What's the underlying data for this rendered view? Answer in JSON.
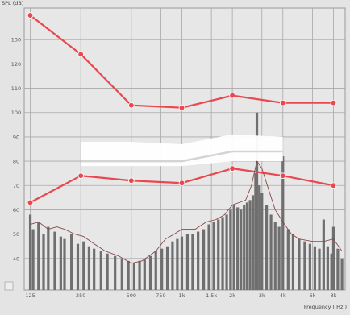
{
  "chart_data": {
    "type": "line",
    "title": "",
    "ylabel": "SPL (dB)",
    "xlabel": "Frequency ( Hz )",
    "x_scale": "log",
    "xlim": [
      115,
      9400
    ],
    "ylim": [
      27,
      143
    ],
    "grid": true,
    "x_ticks": [
      {
        "value": 125,
        "label": "125"
      },
      {
        "value": 250,
        "label": "250"
      },
      {
        "value": 500,
        "label": "500"
      },
      {
        "value": 750,
        "label": "750"
      },
      {
        "value": 1000,
        "label": "1k"
      },
      {
        "value": 1500,
        "label": "1.5k"
      },
      {
        "value": 2000,
        "label": "2k"
      },
      {
        "value": 3000,
        "label": "3k"
      },
      {
        "value": 4000,
        "label": "4k"
      },
      {
        "value": 6000,
        "label": "6k"
      },
      {
        "value": 8000,
        "label": "8k"
      }
    ],
    "y_ticks": [
      40,
      50,
      60,
      70,
      80,
      90,
      100,
      110,
      120,
      130
    ],
    "series": [
      {
        "role": "upper-limit",
        "color": "#e8484e",
        "x": [
          125,
          250,
          500,
          1000,
          2000,
          4000,
          8000
        ],
        "y": [
          140,
          124,
          103,
          102,
          107,
          104,
          104
        ]
      },
      {
        "role": "lower-threshold",
        "color": "#e8484e",
        "x": [
          125,
          250,
          500,
          1000,
          2000,
          4000,
          8000
        ],
        "y": [
          63,
          74,
          72,
          71,
          77,
          74,
          70
        ]
      },
      {
        "role": "speech-band",
        "color": "#ffffff",
        "x": [
          250,
          500,
          1000,
          2000,
          4000
        ],
        "y_low": [
          78,
          78,
          78,
          80,
          80
        ],
        "y_high": [
          88,
          88,
          87,
          91,
          90
        ],
        "y_mid": [
          80,
          80,
          80,
          84,
          84
        ]
      },
      {
        "role": "spectrum-envelope",
        "color": "#8a4747",
        "x": [
          125,
          140,
          160,
          180,
          200,
          230,
          260,
          300,
          350,
          420,
          500,
          580,
          700,
          800,
          900,
          1000,
          1200,
          1400,
          1600,
          1800,
          2000,
          2200,
          2400,
          2600,
          2800,
          3000,
          3300,
          3600,
          4000,
          4500,
          5000,
          6000,
          7000,
          8000,
          9000
        ],
        "y": [
          54,
          55,
          52,
          53,
          52,
          50,
          49,
          46,
          43,
          41,
          38,
          39,
          43,
          48,
          50,
          52,
          52,
          55,
          56,
          58,
          62,
          63,
          64,
          70,
          80,
          77,
          68,
          60,
          55,
          50,
          48,
          47,
          47,
          48,
          43
        ]
      }
    ],
    "spectrum_peaks": {
      "color": "#6f6f6f",
      "x": [
        125,
        130,
        140,
        150,
        160,
        175,
        190,
        200,
        220,
        240,
        260,
        280,
        300,
        330,
        360,
        400,
        440,
        480,
        520,
        560,
        600,
        650,
        700,
        760,
        820,
        880,
        940,
        1000,
        1080,
        1160,
        1250,
        1350,
        1450,
        1550,
        1650,
        1750,
        1850,
        1950,
        2050,
        2150,
        2250,
        2350,
        2450,
        2550,
        2650,
        2750,
        2800,
        2900,
        3000,
        3200,
        3400,
        3600,
        3800,
        4000,
        4300,
        4600,
        5000,
        5400,
        5800,
        6200,
        6600,
        7000,
        7400,
        7800,
        8000,
        8500,
        9000
      ],
      "y": [
        58,
        52,
        55,
        50,
        53,
        51,
        49,
        48,
        50,
        46,
        47,
        45,
        44,
        43,
        42,
        41,
        40,
        39,
        38,
        39,
        40,
        41,
        43,
        44,
        45,
        47,
        48,
        49,
        50,
        50,
        51,
        52,
        54,
        55,
        56,
        57,
        58,
        60,
        62,
        61,
        60,
        62,
        63,
        64,
        66,
        75,
        100,
        70,
        67,
        62,
        58,
        55,
        53,
        82,
        52,
        50,
        48,
        47,
        46,
        45,
        44,
        56,
        45,
        42,
        53,
        44,
        40
      ]
    }
  }
}
